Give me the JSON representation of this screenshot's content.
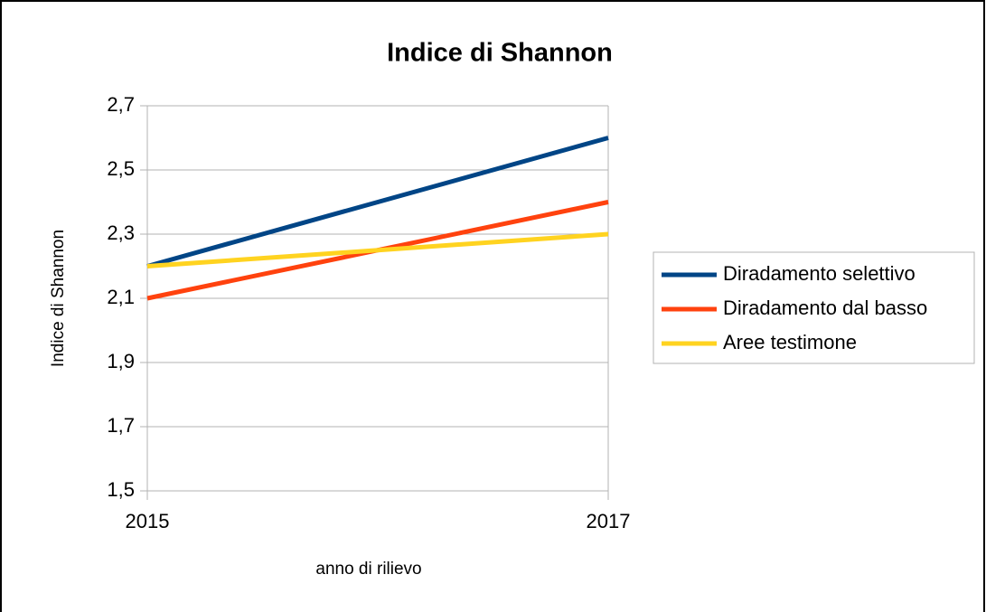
{
  "chart_data": {
    "type": "line",
    "title": "Indice di Shannon",
    "xlabel": "anno di rilievo",
    "ylabel": "Indice di Shannon",
    "x": [
      2015,
      2017
    ],
    "xlim": [
      2015,
      2017
    ],
    "xticks": [
      2015,
      2017
    ],
    "ylim": [
      1.5,
      2.7
    ],
    "yticks": [
      {
        "value": 1.5,
        "label": "1,5"
      },
      {
        "value": 1.7,
        "label": "1,7"
      },
      {
        "value": 1.9,
        "label": "1,9"
      },
      {
        "value": 2.1,
        "label": "2,1"
      },
      {
        "value": 2.3,
        "label": "2,3"
      },
      {
        "value": 2.5,
        "label": "2,5"
      },
      {
        "value": 2.7,
        "label": "2,7"
      }
    ],
    "grid": true,
    "legend": "right",
    "series": [
      {
        "name": "Diradamento selettivo",
        "color": "#004586",
        "values": [
          2.2,
          2.6
        ]
      },
      {
        "name": "Diradamento dal basso",
        "color": "#ff420e",
        "values": [
          2.1,
          2.4
        ]
      },
      {
        "name": "Aree testimone",
        "color": "#ffd320",
        "values": [
          2.2,
          2.3
        ]
      }
    ]
  }
}
